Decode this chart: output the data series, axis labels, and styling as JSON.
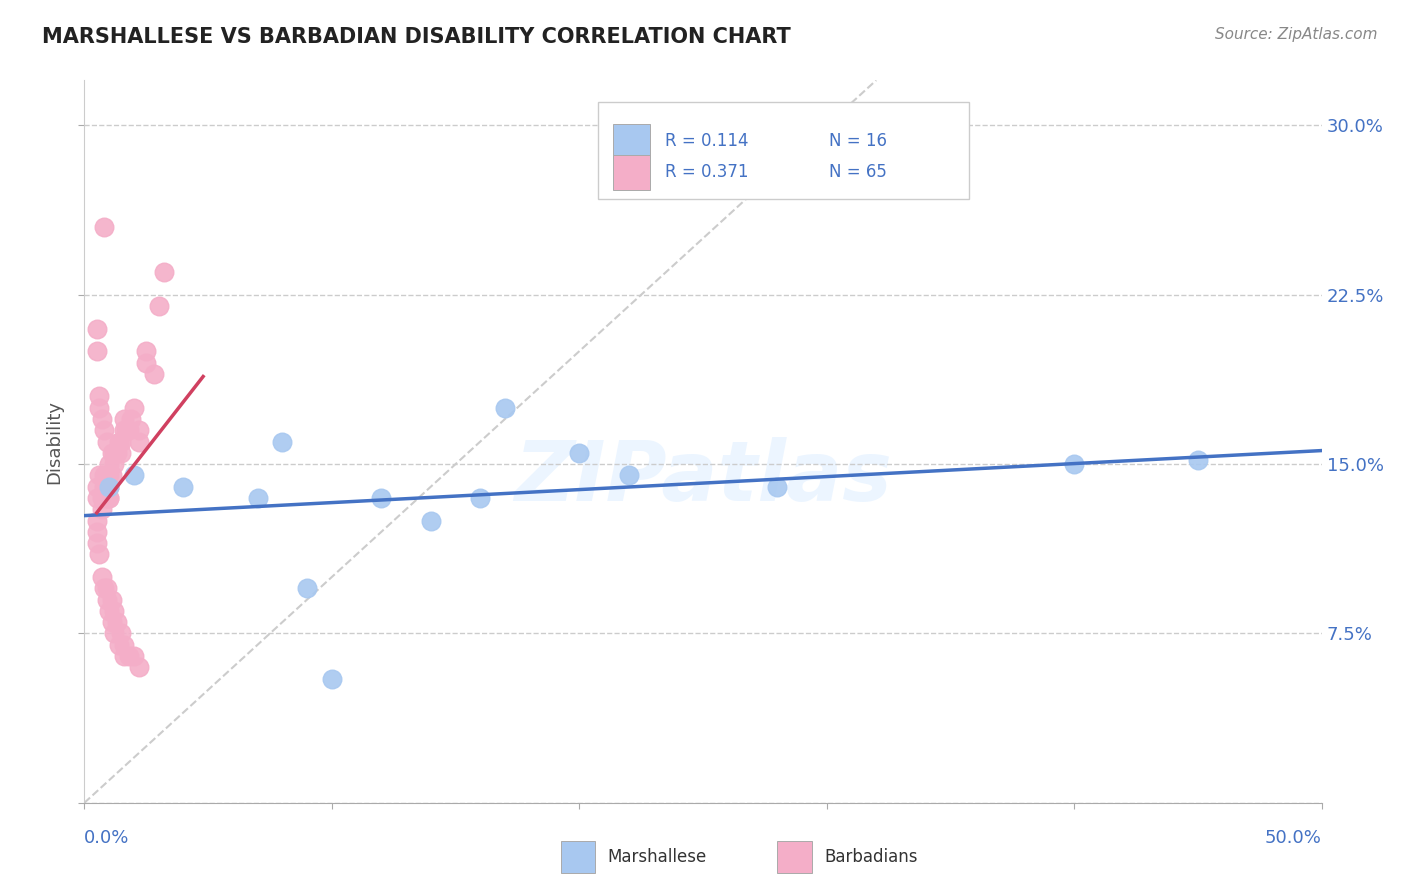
{
  "title": "MARSHALLESE VS BARBADIAN DISABILITY CORRELATION CHART",
  "source": "Source: ZipAtlas.com",
  "ylabel": "Disability",
  "yticks": [
    0.0,
    0.075,
    0.15,
    0.225,
    0.3
  ],
  "ytick_labels": [
    "",
    "7.5%",
    "15.0%",
    "22.5%",
    "30.0%"
  ],
  "xlim": [
    0.0,
    0.5
  ],
  "ylim": [
    0.0,
    0.32
  ],
  "watermark": "ZIPatlas",
  "legend_r_blue": "R = 0.114",
  "legend_n_blue": "N = 16",
  "legend_r_pink": "R = 0.371",
  "legend_n_pink": "N = 65",
  "blue_color": "#a8c8f0",
  "pink_color": "#f4aec8",
  "blue_line_color": "#4472c4",
  "pink_line_color": "#d04060",
  "blue_scatter_x": [
    0.02,
    0.04,
    0.07,
    0.08,
    0.12,
    0.14,
    0.17,
    0.2,
    0.22,
    0.28,
    0.4,
    0.01,
    0.09,
    0.16,
    0.45,
    0.1
  ],
  "blue_scatter_y": [
    0.145,
    0.14,
    0.135,
    0.16,
    0.135,
    0.125,
    0.175,
    0.155,
    0.145,
    0.14,
    0.15,
    0.14,
    0.095,
    0.135,
    0.152,
    0.055
  ],
  "pink_scatter_x": [
    0.005,
    0.005,
    0.005,
    0.007,
    0.007,
    0.008,
    0.008,
    0.009,
    0.009,
    0.009,
    0.01,
    0.01,
    0.01,
    0.01,
    0.011,
    0.011,
    0.012,
    0.012,
    0.013,
    0.014,
    0.015,
    0.015,
    0.016,
    0.016,
    0.017,
    0.018,
    0.019,
    0.02,
    0.022,
    0.022,
    0.025,
    0.025,
    0.028,
    0.03,
    0.032,
    0.005,
    0.005,
    0.006,
    0.006,
    0.007,
    0.008,
    0.009,
    0.01,
    0.011,
    0.012,
    0.013,
    0.015,
    0.016,
    0.018,
    0.02,
    0.022,
    0.005,
    0.005,
    0.006,
    0.007,
    0.008,
    0.009,
    0.009,
    0.01,
    0.011,
    0.012,
    0.014,
    0.016,
    0.006,
    0.008
  ],
  "pink_scatter_y": [
    0.14,
    0.135,
    0.125,
    0.135,
    0.13,
    0.145,
    0.14,
    0.145,
    0.14,
    0.135,
    0.15,
    0.145,
    0.14,
    0.135,
    0.155,
    0.145,
    0.155,
    0.15,
    0.155,
    0.16,
    0.16,
    0.155,
    0.17,
    0.165,
    0.165,
    0.165,
    0.17,
    0.175,
    0.16,
    0.165,
    0.2,
    0.195,
    0.19,
    0.22,
    0.235,
    0.21,
    0.2,
    0.18,
    0.175,
    0.17,
    0.165,
    0.16,
    0.135,
    0.09,
    0.085,
    0.08,
    0.075,
    0.07,
    0.065,
    0.065,
    0.06,
    0.12,
    0.115,
    0.11,
    0.1,
    0.095,
    0.095,
    0.09,
    0.085,
    0.08,
    0.075,
    0.07,
    0.065,
    0.145,
    0.255
  ]
}
